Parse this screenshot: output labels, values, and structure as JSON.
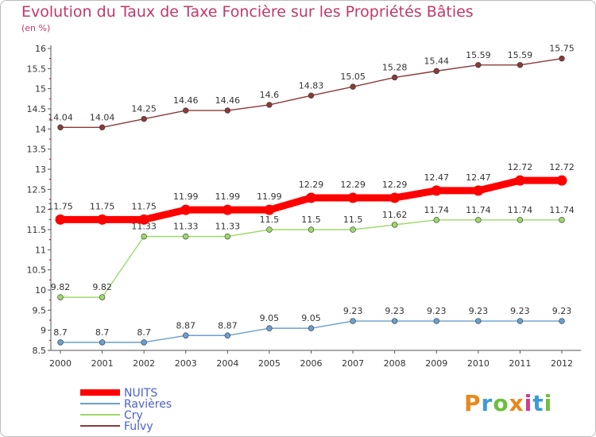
{
  "title": "Evolution du Taux de Taxe Foncière sur les Propriétés Bâties",
  "subtitle": "(en %)",
  "logo": {
    "text": "Proxiti",
    "colors": [
      "#e8891a",
      "#3f9ad8",
      "#6cbf3a",
      "#e8891a",
      "#d23b8a",
      "#3f9ad8",
      "#6cbf3a"
    ]
  },
  "chart_data": {
    "type": "line",
    "title": "Evolution du Taux de Taxe Foncière sur les Propriétés Bâties",
    "ylabel": "(en %)",
    "xlabel": "",
    "ylim": [
      8.5,
      16
    ],
    "grid": false,
    "legend_position": "bottom-left",
    "x": [
      "2000",
      "2001",
      "2002",
      "2003",
      "2004",
      "2005",
      "2006",
      "2007",
      "2008",
      "2009",
      "2010",
      "2011",
      "2012"
    ],
    "y_ticks": [
      "8.5",
      "9",
      "9.5",
      "10",
      "10.5",
      "11",
      "11.5",
      "12",
      "12.5",
      "13",
      "13.5",
      "14",
      "14.5",
      "15",
      "15.5",
      "16"
    ],
    "series": [
      {
        "name": "NUITS",
        "color": "#ff0000",
        "values": [
          11.75,
          11.75,
          11.75,
          11.99,
          11.99,
          11.99,
          12.29,
          12.29,
          12.29,
          12.47,
          12.47,
          12.72,
          12.72
        ],
        "labels": [
          "11.75",
          "11.75",
          "11.75",
          "11.99",
          "11.99",
          "11.99",
          "12.29",
          "12.29",
          "12.29",
          "12.47",
          "12.47",
          "12.72",
          "12.72"
        ]
      },
      {
        "name": "Ravières",
        "color": "#6a9fce",
        "values": [
          8.7,
          8.7,
          8.7,
          8.87,
          8.87,
          9.05,
          9.05,
          9.23,
          9.23,
          9.23,
          9.23,
          9.23,
          9.23
        ],
        "labels": [
          "8.7",
          "8.7",
          "8.7",
          "8.87",
          "8.87",
          "9.05",
          "9.05",
          "9.23",
          "9.23",
          "9.23",
          "9.23",
          "9.23",
          "9.23"
        ]
      },
      {
        "name": "Cry",
        "color": "#9dd96a",
        "values": [
          9.82,
          9.82,
          11.33,
          11.33,
          11.33,
          11.5,
          11.5,
          11.5,
          11.62,
          11.74,
          11.74,
          11.74,
          11.74
        ],
        "labels": [
          "9.82",
          "9.82",
          "11.33",
          "11.33",
          "11.33",
          "11.5",
          "11.5",
          "11.5",
          "11.62",
          "11.74",
          "11.74",
          "11.74",
          "11.74"
        ]
      },
      {
        "name": "Fulvy",
        "color": "#8a3a3a",
        "values": [
          14.04,
          14.04,
          14.25,
          14.46,
          14.46,
          14.6,
          14.83,
          15.05,
          15.28,
          15.44,
          15.59,
          15.59,
          15.75
        ],
        "labels": [
          "14.04",
          "14.04",
          "14.25",
          "14.46",
          "14.46",
          "14.6",
          "14.83",
          "15.05",
          "15.28",
          "15.44",
          "15.59",
          "15.59",
          "15.75"
        ]
      }
    ]
  }
}
